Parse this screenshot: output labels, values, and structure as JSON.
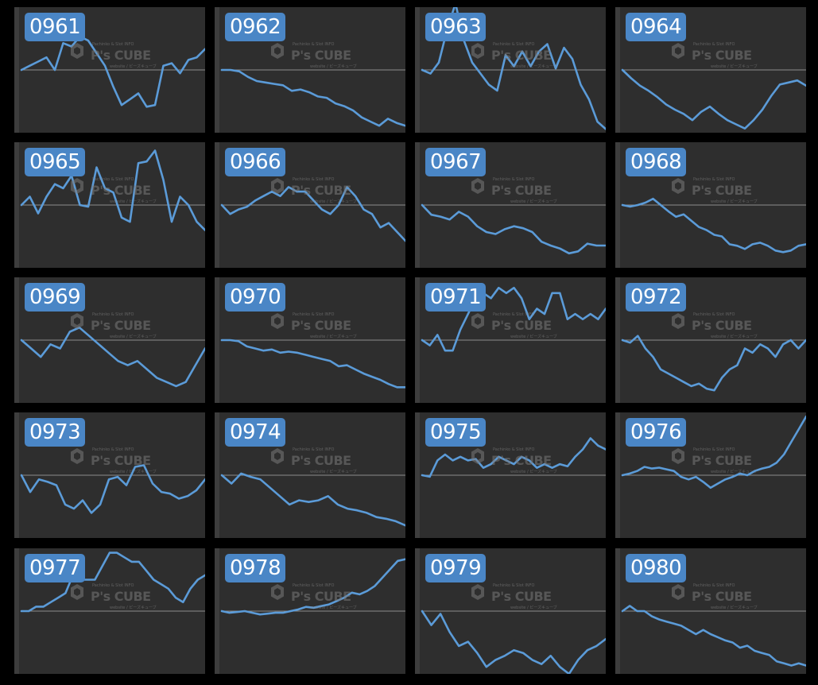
{
  "watermark": {
    "top_text": "Pachinko & Slot INFO",
    "logo_text": "P's CUBE",
    "bottom_text": "website / ピーズキューブ"
  },
  "style": {
    "line_color": "#5b9bd8",
    "baseline_color": "#8c8c8c",
    "panel_bg": "#2e2e2e",
    "label_bg": "#4a86c6"
  },
  "chart_data": [
    {
      "type": "line",
      "title": "0961",
      "x": [
        0,
        1,
        2,
        3,
        4,
        5,
        6,
        7,
        8,
        9,
        10,
        11,
        12,
        13,
        14,
        15,
        16,
        17,
        18,
        19,
        20,
        21,
        22
      ],
      "values": [
        0,
        5,
        10,
        15,
        0,
        32,
        28,
        40,
        35,
        20,
        5,
        -20,
        -42,
        -35,
        -28,
        -44,
        -42,
        5,
        8,
        -4,
        12,
        15,
        25
      ],
      "ylim": [
        -75,
        75
      ]
    },
    {
      "type": "line",
      "title": "0962",
      "x": [
        0,
        1,
        2,
        3,
        4,
        5,
        6,
        7,
        8,
        9,
        10,
        11,
        12,
        13,
        14,
        15,
        16,
        17,
        18,
        19,
        20,
        21
      ],
      "values": [
        0,
        0,
        -1,
        -5,
        -8,
        -9,
        -10,
        -11,
        -15,
        -14,
        -16,
        -19,
        -20,
        -24,
        -26,
        -29,
        -34,
        -37,
        -40,
        -35,
        -38,
        -40
      ],
      "ylim": [
        -45,
        45
      ]
    },
    {
      "type": "line",
      "title": "0963",
      "x": [
        0,
        1,
        2,
        3,
        4,
        5,
        6,
        7,
        8,
        9,
        10,
        11,
        12,
        13,
        14,
        15,
        16,
        17,
        18,
        19,
        20,
        21,
        22
      ],
      "values": [
        0,
        -5,
        10,
        55,
        90,
        40,
        10,
        -5,
        -20,
        -28,
        20,
        5,
        25,
        5,
        25,
        35,
        2,
        30,
        15,
        -20,
        -40,
        -70,
        -80
      ],
      "ylim": [
        -85,
        85
      ]
    },
    {
      "type": "line",
      "title": "0964",
      "x": [
        0,
        1,
        2,
        3,
        4,
        5,
        6,
        7,
        8,
        9,
        10,
        11,
        12,
        13,
        14,
        15,
        16,
        17,
        18,
        19,
        20,
        21
      ],
      "values": [
        0,
        -8,
        -15,
        -20,
        -26,
        -33,
        -38,
        -42,
        -48,
        -40,
        -35,
        -42,
        -48,
        -52,
        -56,
        -48,
        -38,
        -25,
        -14,
        -12,
        -10,
        -15
      ],
      "ylim": [
        -60,
        60
      ]
    },
    {
      "type": "line",
      "title": "0965",
      "x": [
        0,
        1,
        2,
        3,
        4,
        5,
        6,
        7,
        8,
        9,
        10,
        11,
        12,
        13,
        14,
        15,
        16,
        17,
        18,
        19,
        20,
        21,
        22
      ],
      "values": [
        0,
        10,
        -10,
        10,
        25,
        20,
        35,
        0,
        -2,
        45,
        20,
        15,
        -15,
        -20,
        50,
        52,
        65,
        30,
        -20,
        10,
        0,
        -20,
        -30
      ],
      "ylim": [
        -75,
        75
      ]
    },
    {
      "type": "line",
      "title": "0966",
      "x": [
        0,
        1,
        2,
        3,
        4,
        5,
        6,
        7,
        8,
        9,
        10,
        11,
        12,
        13,
        14,
        15,
        16,
        17,
        18,
        19,
        20,
        21,
        22
      ],
      "values": [
        0,
        -10,
        -5,
        -2,
        5,
        10,
        15,
        10,
        20,
        15,
        15,
        5,
        -5,
        -10,
        0,
        20,
        10,
        -5,
        -10,
        -25,
        -20,
        -30,
        -40
      ],
      "ylim": [
        -70,
        70
      ]
    },
    {
      "type": "line",
      "title": "0967",
      "x": [
        0,
        1,
        2,
        3,
        4,
        5,
        6,
        7,
        8,
        9,
        10,
        11,
        12,
        13,
        14,
        15,
        16,
        17,
        18,
        19,
        20
      ],
      "values": [
        0,
        -10,
        -12,
        -15,
        -7,
        -12,
        -22,
        -28,
        -30,
        -25,
        -22,
        -24,
        -28,
        -38,
        -42,
        -45,
        -50,
        -48,
        -40,
        -42,
        -42
      ],
      "ylim": [
        -65,
        65
      ]
    },
    {
      "type": "line",
      "title": "0968",
      "x": [
        0,
        1,
        2,
        3,
        4,
        5,
        6,
        7,
        8,
        9,
        10,
        11,
        12,
        13,
        14,
        15,
        16,
        17,
        18,
        19,
        20,
        21,
        22,
        23,
        24
      ],
      "values": [
        0,
        -2,
        0,
        3,
        8,
        0,
        -8,
        -15,
        -12,
        -20,
        -28,
        -32,
        -38,
        -40,
        -50,
        -52,
        -56,
        -50,
        -48,
        -52,
        -58,
        -60,
        -58,
        -52,
        -50
      ],
      "ylim": [
        -80,
        80
      ]
    },
    {
      "type": "line",
      "title": "0969",
      "x": [
        0,
        1,
        2,
        3,
        4,
        5,
        6,
        7,
        8,
        9,
        10,
        11,
        12,
        13,
        14,
        15,
        16,
        17,
        18,
        19
      ],
      "values": [
        0,
        -10,
        -20,
        -5,
        -10,
        10,
        15,
        5,
        -5,
        -15,
        -25,
        -30,
        -25,
        -35,
        -45,
        -50,
        -55,
        -50,
        -30,
        -10
      ],
      "ylim": [
        -75,
        75
      ]
    },
    {
      "type": "line",
      "title": "0970",
      "x": [
        0,
        1,
        2,
        3,
        4,
        5,
        6,
        7,
        8,
        9,
        10,
        11,
        12,
        13,
        14,
        15,
        16,
        17,
        18,
        19,
        20,
        21,
        22
      ],
      "values": [
        0,
        0,
        -1,
        -6,
        -8,
        -10,
        -9,
        -12,
        -11,
        -12,
        -14,
        -16,
        -18,
        -20,
        -25,
        -24,
        -28,
        -32,
        -35,
        -38,
        -42,
        -45,
        -45
      ],
      "ylim": [
        -60,
        60
      ]
    },
    {
      "type": "line",
      "title": "0971",
      "x": [
        0,
        1,
        2,
        3,
        4,
        5,
        6,
        7,
        8,
        9,
        10,
        11,
        12,
        13,
        14,
        15,
        16,
        17,
        18,
        19,
        20,
        21,
        22,
        23,
        24
      ],
      "values": [
        0,
        -5,
        5,
        -10,
        -10,
        10,
        25,
        40,
        45,
        40,
        50,
        45,
        50,
        40,
        20,
        30,
        25,
        45,
        45,
        20,
        25,
        20,
        25,
        20,
        30
      ],
      "ylim": [
        -60,
        60
      ]
    },
    {
      "type": "line",
      "title": "0972",
      "x": [
        0,
        1,
        2,
        3,
        4,
        5,
        6,
        7,
        8,
        9,
        10,
        11,
        12,
        13,
        14,
        15,
        16,
        17,
        18,
        19,
        20,
        21,
        22,
        23,
        24
      ],
      "values": [
        0,
        -3,
        5,
        -10,
        -20,
        -35,
        -40,
        -45,
        -50,
        -55,
        -52,
        -58,
        -60,
        -45,
        -35,
        -30,
        -10,
        -15,
        -5,
        -10,
        -20,
        -5,
        0,
        -10,
        0
      ],
      "ylim": [
        -75,
        75
      ]
    },
    {
      "type": "line",
      "title": "0973",
      "x": [
        0,
        1,
        2,
        3,
        4,
        5,
        6,
        7,
        8,
        9,
        10,
        11,
        12,
        13,
        14,
        15,
        16,
        17,
        18,
        19,
        20,
        21
      ],
      "values": [
        0,
        -20,
        -5,
        -8,
        -12,
        -35,
        -40,
        -30,
        -45,
        -35,
        -5,
        -2,
        -12,
        10,
        12,
        -10,
        -20,
        -22,
        -28,
        -25,
        -18,
        -5
      ],
      "ylim": [
        -75,
        75
      ]
    },
    {
      "type": "line",
      "title": "0974",
      "x": [
        0,
        1,
        2,
        3,
        4,
        5,
        6,
        7,
        8,
        9,
        10,
        11,
        12,
        13,
        14,
        15,
        16,
        17,
        18,
        19
      ],
      "values": [
        0,
        -10,
        2,
        -2,
        -5,
        -15,
        -25,
        -35,
        -30,
        -32,
        -30,
        -25,
        -35,
        -40,
        -42,
        -45,
        -50,
        -52,
        -55,
        -60
      ],
      "ylim": [
        -75,
        75
      ]
    },
    {
      "type": "line",
      "title": "0975",
      "x": [
        0,
        1,
        2,
        3,
        4,
        5,
        6,
        7,
        8,
        9,
        10,
        11,
        12,
        13,
        14,
        15,
        16,
        17,
        18,
        19,
        20,
        21,
        22,
        23,
        24
      ],
      "values": [
        0,
        -2,
        20,
        28,
        20,
        25,
        20,
        22,
        10,
        15,
        25,
        20,
        15,
        25,
        20,
        10,
        15,
        10,
        15,
        12,
        25,
        35,
        50,
        40,
        35
      ],
      "ylim": [
        -85,
        85
      ]
    },
    {
      "type": "line",
      "title": "0976",
      "x": [
        0,
        1,
        2,
        3,
        4,
        5,
        6,
        7,
        8,
        9,
        10,
        11,
        12,
        13,
        14,
        15,
        16,
        17,
        18,
        19,
        20,
        21,
        22,
        23,
        24,
        25
      ],
      "values": [
        0,
        2,
        5,
        10,
        8,
        9,
        7,
        5,
        -2,
        -5,
        -2,
        -8,
        -15,
        -10,
        -5,
        -2,
        2,
        0,
        5,
        8,
        10,
        15,
        25,
        40,
        55,
        70
      ],
      "ylim": [
        -75,
        75
      ]
    },
    {
      "type": "line",
      "title": "0977",
      "x": [
        0,
        1,
        2,
        3,
        4,
        5,
        6,
        7,
        8,
        9,
        10,
        11,
        12,
        13,
        14,
        15,
        16,
        17,
        18,
        19,
        20,
        21,
        22,
        23,
        24,
        25
      ],
      "values": [
        0,
        0,
        5,
        5,
        10,
        15,
        20,
        40,
        35,
        35,
        35,
        50,
        65,
        65,
        60,
        55,
        55,
        45,
        35,
        30,
        25,
        15,
        10,
        25,
        35,
        40
      ],
      "ylim": [
        -70,
        70
      ]
    },
    {
      "type": "line",
      "title": "0978",
      "x": [
        0,
        1,
        2,
        3,
        4,
        5,
        6,
        7,
        8,
        9,
        10,
        11,
        12,
        13,
        14,
        15,
        16,
        17,
        18,
        19,
        20,
        21,
        22,
        23,
        24
      ],
      "values": [
        0,
        -2,
        -1,
        0,
        -2,
        -4,
        -3,
        -2,
        -2,
        0,
        2,
        5,
        4,
        6,
        8,
        12,
        16,
        22,
        20,
        24,
        30,
        40,
        50,
        60,
        62
      ],
      "ylim": [
        -75,
        75
      ]
    },
    {
      "type": "line",
      "title": "0979",
      "x": [
        0,
        1,
        2,
        3,
        4,
        5,
        6,
        7,
        8,
        9,
        10,
        11,
        12,
        13,
        14,
        15,
        16,
        17,
        18,
        19,
        20
      ],
      "values": [
        0,
        -10,
        -2,
        -15,
        -25,
        -22,
        -30,
        -40,
        -35,
        -32,
        -28,
        -30,
        -35,
        -38,
        -32,
        -40,
        -45,
        -35,
        -28,
        -25,
        -20
      ],
      "ylim": [
        -45,
        45
      ]
    },
    {
      "type": "line",
      "title": "0980",
      "x": [
        0,
        1,
        2,
        3,
        4,
        5,
        6,
        7,
        8,
        9,
        10,
        11,
        12,
        13,
        14,
        15,
        16,
        17,
        18,
        19,
        20,
        21,
        22,
        23,
        24,
        25
      ],
      "values": [
        0,
        5,
        0,
        0,
        -5,
        -8,
        -10,
        -12,
        -14,
        -18,
        -22,
        -18,
        -22,
        -25,
        -28,
        -30,
        -35,
        -33,
        -38,
        -40,
        -42,
        -48,
        -50,
        -52,
        -50,
        -52
      ],
      "ylim": [
        -60,
        60
      ]
    }
  ]
}
